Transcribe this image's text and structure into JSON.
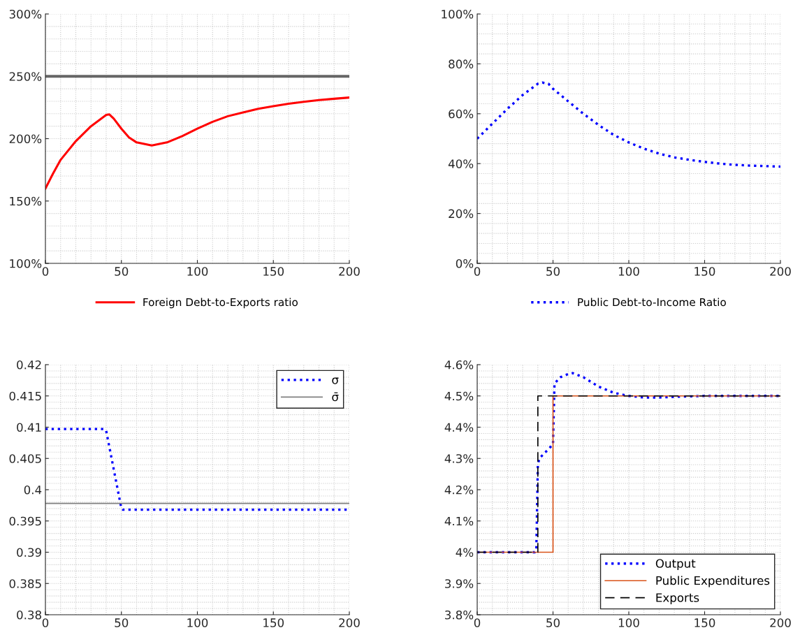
{
  "chart_data": [
    {
      "type": "line",
      "xlim": [
        0,
        200
      ],
      "xticks": [
        0,
        50,
        100,
        150,
        200
      ],
      "ylim": [
        100,
        300
      ],
      "yticks": [
        {
          "value": 100,
          "label": "100%"
        },
        {
          "value": 150,
          "label": "150%"
        },
        {
          "value": 200,
          "label": "200%"
        },
        {
          "value": 250,
          "label": "250%"
        },
        {
          "value": 300,
          "label": "300%"
        }
      ],
      "grid": true,
      "legend": "bottom",
      "line_style": "solid",
      "series": [
        {
          "name": "Foreign Debt-to-Exports ratio",
          "color": "#ff0000",
          "x": [
            0,
            5,
            10,
            20,
            30,
            40,
            42,
            45,
            50,
            55,
            60,
            70,
            80,
            90,
            100,
            110,
            120,
            130,
            140,
            150,
            160,
            170,
            180,
            190,
            200
          ],
          "values": [
            160,
            172,
            183,
            198,
            210,
            219,
            219.5,
            216,
            208,
            201,
            197,
            194.5,
            197,
            202,
            208,
            213.5,
            218,
            221,
            224,
            226,
            228,
            229.5,
            231,
            232,
            233
          ]
        }
      ],
      "ref_lines": [
        {
          "axis": "y",
          "value": 250,
          "color": "#666666",
          "line_style": "solid"
        }
      ]
    },
    {
      "type": "line",
      "xlim": [
        0,
        200
      ],
      "xticks": [
        0,
        50,
        100,
        150,
        200
      ],
      "ylim": [
        0,
        100
      ],
      "yticks": [
        {
          "value": 0,
          "label": "0%"
        },
        {
          "value": 20,
          "label": "20%"
        },
        {
          "value": 40,
          "label": "40%"
        },
        {
          "value": 60,
          "label": "60%"
        },
        {
          "value": 80,
          "label": "80%"
        },
        {
          "value": 100,
          "label": "100%"
        }
      ],
      "grid": true,
      "legend": "bottom",
      "line_style": "dotted",
      "series": [
        {
          "name": "Public Debt-to-Income Ratio",
          "color": "#0000ff",
          "x": [
            0,
            10,
            20,
            30,
            40,
            43,
            47,
            50,
            60,
            70,
            80,
            90,
            100,
            110,
            120,
            130,
            140,
            150,
            160,
            170,
            180,
            190,
            200
          ],
          "values": [
            50,
            56,
            62,
            67.5,
            72,
            72.5,
            72,
            70,
            65,
            60,
            55.5,
            51.5,
            48.5,
            46,
            44,
            42.5,
            41.5,
            40.7,
            40,
            39.5,
            39.2,
            39,
            38.8
          ]
        }
      ]
    },
    {
      "type": "line",
      "xlim": [
        0,
        200
      ],
      "xticks": [
        0,
        50,
        100,
        150,
        200
      ],
      "ylim": [
        0.38,
        0.42
      ],
      "yticks": [
        0.38,
        0.385,
        0.39,
        0.395,
        0.4,
        0.405,
        0.41,
        0.415,
        0.42
      ],
      "grid": true,
      "legend": "top right",
      "series": [
        {
          "name": "σ",
          "color": "#0000ff",
          "line_style": "dotted",
          "x": [
            0,
            39,
            40,
            50,
            51,
            200
          ],
          "values": [
            0.4097,
            0.4097,
            0.4094,
            0.397,
            0.3968,
            0.3968
          ]
        },
        {
          "name": "σ̄",
          "color": "#808080",
          "line_style": "solid",
          "x": [
            0,
            200
          ],
          "values": [
            0.3978,
            0.3978
          ]
        }
      ]
    },
    {
      "type": "line",
      "xlim": [
        0,
        200
      ],
      "xticks": [
        0,
        50,
        100,
        150,
        200
      ],
      "ylim": [
        3.8,
        4.6
      ],
      "yticks": [
        {
          "value": 3.8,
          "label": "3.8%"
        },
        {
          "value": 3.9,
          "label": "3.9%"
        },
        {
          "value": 4.0,
          "label": "4%"
        },
        {
          "value": 4.1,
          "label": "4.1%"
        },
        {
          "value": 4.2,
          "label": "4.2%"
        },
        {
          "value": 4.3,
          "label": "4.3%"
        },
        {
          "value": 4.4,
          "label": "4.4%"
        },
        {
          "value": 4.5,
          "label": "4.5%"
        },
        {
          "value": 4.6,
          "label": "4.6%"
        }
      ],
      "grid": true,
      "legend": "bottom right",
      "series": [
        {
          "name": "Output",
          "color": "#0000ff",
          "line_style": "dotted",
          "x": [
            0,
            38,
            39,
            40,
            41,
            45,
            50,
            51,
            55,
            60,
            63,
            70,
            80,
            90,
            100,
            110,
            120,
            130,
            150,
            200
          ],
          "values": [
            4.0,
            4.0,
            4.01,
            4.28,
            4.3,
            4.32,
            4.345,
            4.54,
            4.56,
            4.57,
            4.573,
            4.56,
            4.53,
            4.51,
            4.5,
            4.495,
            4.495,
            4.497,
            4.5,
            4.5
          ]
        },
        {
          "name": "Public Expenditures",
          "color": "#d95319",
          "line_style": "solid",
          "x": [
            0,
            50,
            50,
            200
          ],
          "values": [
            4.0,
            4.0,
            4.5,
            4.5
          ]
        },
        {
          "name": "Exports",
          "color": "#000000",
          "line_style": "dashed",
          "x": [
            0,
            40,
            40,
            200
          ],
          "values": [
            4.0,
            4.0,
            4.5,
            4.5
          ]
        }
      ]
    }
  ]
}
